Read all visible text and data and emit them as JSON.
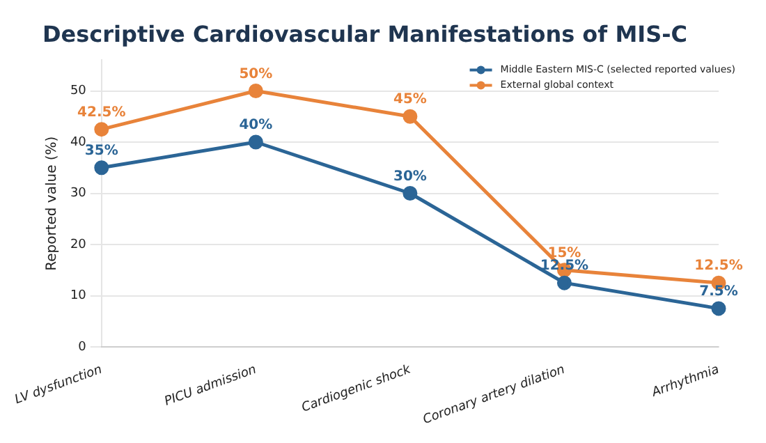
{
  "chart_data": {
    "type": "line",
    "title": "Descriptive Cardiovascular Manifestations of MIS-C",
    "ylabel": "Reported value (%)",
    "categories": [
      "LV dysfunction",
      "PICU admission",
      "Cardiogenic shock",
      "Coronary artery dilation",
      "Arrhythmia"
    ],
    "series": [
      {
        "name": "Middle Eastern MIS-C (selected reported values)",
        "color": "#2b6596",
        "values": [
          35,
          40,
          30,
          12.5,
          7.5
        ],
        "value_labels": [
          "35%",
          "40%",
          "30%",
          "12.5%",
          "7.5%"
        ]
      },
      {
        "name": "External global context",
        "color": "#e8833a",
        "values": [
          42.5,
          50,
          45,
          15,
          12.5
        ],
        "value_labels": [
          "42.5%",
          "50%",
          "45%",
          "15%",
          "12.5%"
        ]
      }
    ],
    "ylim": [
      0,
      56
    ],
    "yticks": [
      0,
      10,
      20,
      30,
      40,
      50
    ],
    "grid": "y",
    "legend": "top right",
    "marker": "circle",
    "line_style": "solid"
  }
}
